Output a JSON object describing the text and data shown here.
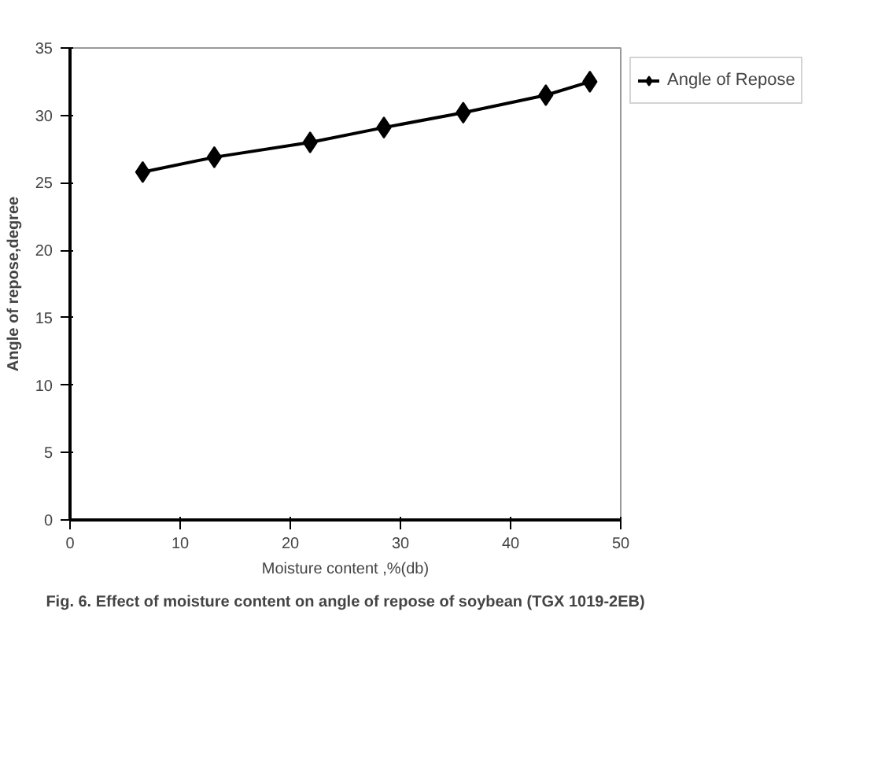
{
  "chart_data": {
    "type": "line",
    "xlabel": "Moisture content ,%(db)",
    "ylabel": "Angle of repose,degree",
    "x": [
      6.6,
      13.1,
      21.8,
      28.5,
      35.7,
      43.2,
      47.2
    ],
    "series": [
      {
        "name": "Angle of Repose",
        "color": "#000000",
        "values": [
          25.8,
          26.9,
          28.0,
          29.1,
          30.2,
          31.5,
          32.5
        ]
      }
    ],
    "xlim": [
      0,
      50
    ],
    "xticks": [
      0,
      10,
      20,
      30,
      40,
      50
    ],
    "ylim": [
      0,
      35
    ],
    "yticks": [
      0,
      5,
      10,
      15,
      20,
      25,
      30,
      35
    ],
    "grid": false,
    "legend": "top right",
    "marker": "diamond",
    "line_style": "solid",
    "annotations": [
      "Fig. 6. Effect of moisture content on angle of repose of soybean (TGX 1019-2EB)"
    ]
  }
}
